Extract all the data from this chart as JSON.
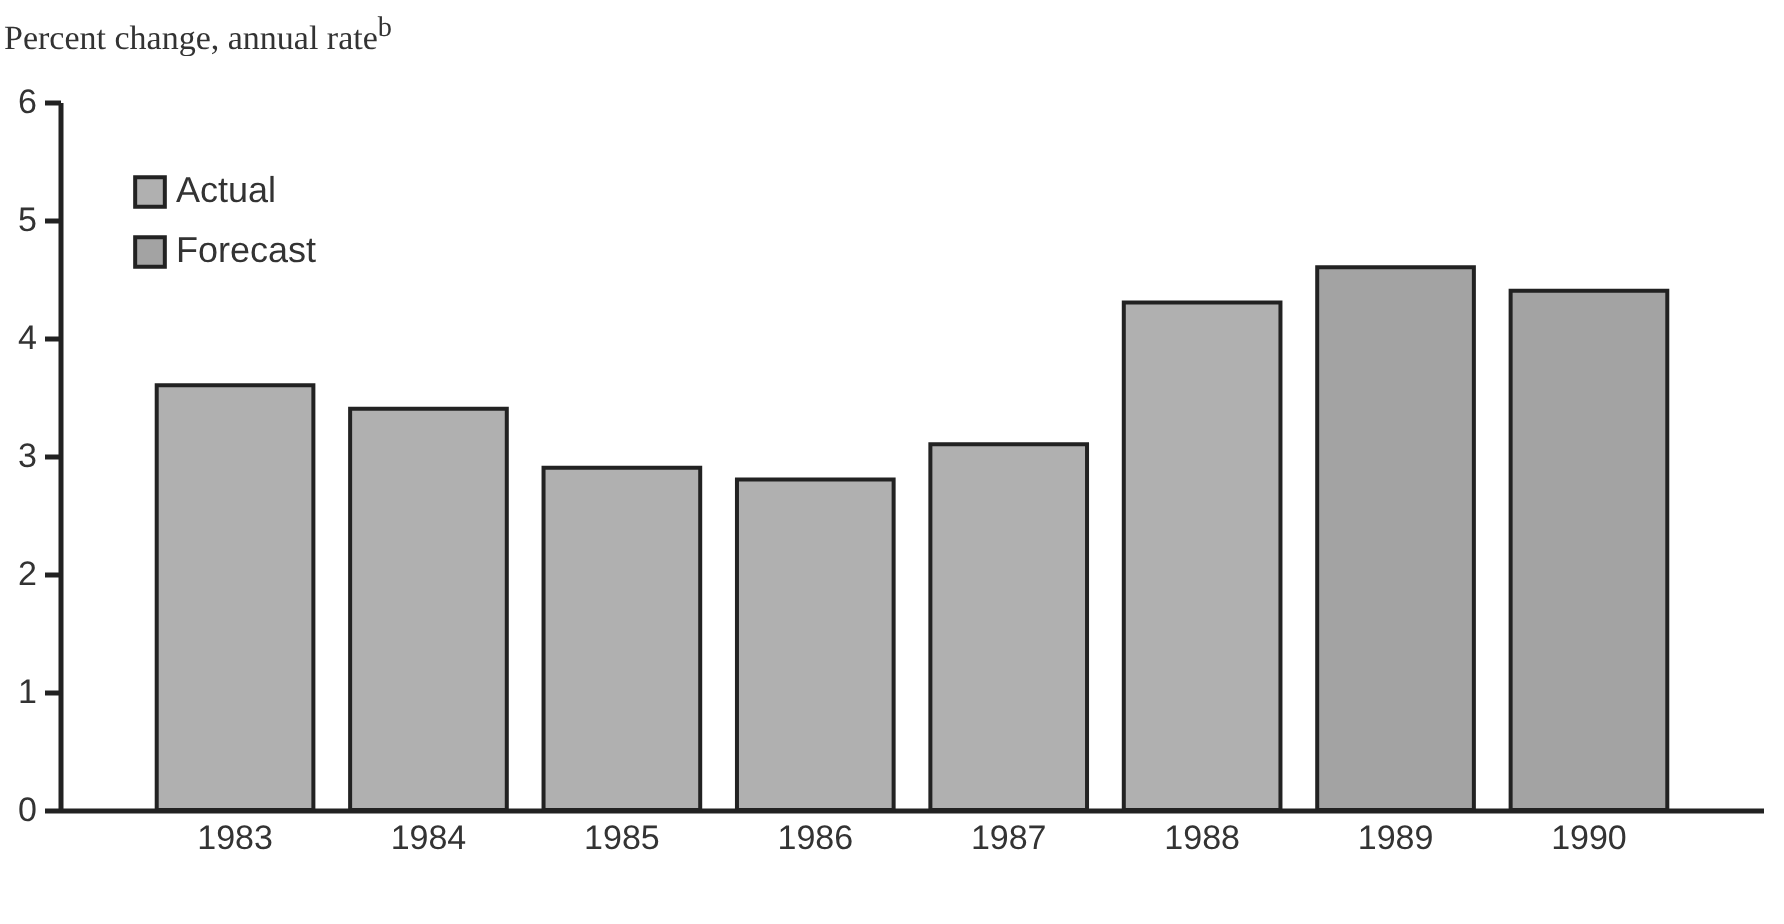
{
  "chart_data": {
    "type": "bar",
    "ylabel": "Percent change, annual rate$^{b}$",
    "categories": [
      "1983",
      "1984",
      "1985",
      "1986",
      "1987",
      "1988",
      "1989",
      "1990"
    ],
    "series": [
      {
        "name": "Actual",
        "color": "#b0b0b0",
        "values": [
          3.6,
          3.4,
          2.9,
          2.8,
          3.1,
          4.3,
          null,
          null
        ]
      },
      {
        "name": "Forecast",
        "color": "#a3a3a3",
        "values": [
          null,
          null,
          null,
          null,
          null,
          null,
          4.6,
          4.4
        ]
      }
    ],
    "ylim": [
      0,
      6
    ],
    "yticks": [
      0,
      1,
      2,
      3,
      4,
      5,
      6
    ],
    "legend": "top left"
  }
}
